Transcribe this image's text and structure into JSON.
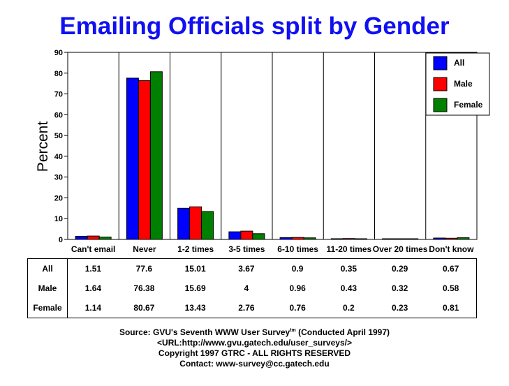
{
  "chart_data": {
    "type": "bar",
    "title": "Emailing Officials split by Gender",
    "ylabel": "Percent",
    "ylim": [
      0,
      90
    ],
    "yticks": [
      0,
      10,
      20,
      30,
      40,
      50,
      60,
      70,
      80,
      90
    ],
    "grid": "vertical lines between categories",
    "legend_position": "top-right",
    "categories": [
      "Can't email",
      "Never",
      "1-2 times",
      "3-5 times",
      "6-10 times",
      "11-20 times",
      "Over 20 times",
      "Don't know"
    ],
    "series": [
      {
        "name": "All",
        "color": "#0000ff",
        "values": [
          1.51,
          77.6,
          15.01,
          3.67,
          0.9,
          0.35,
          0.29,
          0.67
        ]
      },
      {
        "name": "Male",
        "color": "#ff0000",
        "values": [
          1.64,
          76.38,
          15.69,
          4,
          0.96,
          0.43,
          0.32,
          0.58
        ]
      },
      {
        "name": "Female",
        "color": "#008000",
        "values": [
          1.14,
          80.67,
          13.43,
          2.76,
          0.76,
          0.2,
          0.23,
          0.81
        ]
      }
    ],
    "table_rows": [
      {
        "label": "All",
        "values": [
          "1.51",
          "77.6",
          "15.01",
          "3.67",
          "0.9",
          "0.35",
          "0.29",
          "0.67"
        ]
      },
      {
        "label": "Male",
        "values": [
          "1.64",
          "76.38",
          "15.69",
          "4",
          "0.96",
          "0.43",
          "0.32",
          "0.58"
        ]
      },
      {
        "label": "Female",
        "values": [
          "1.14",
          "80.67",
          "13.43",
          "2.76",
          "0.76",
          "0.2",
          "0.23",
          "0.81"
        ]
      }
    ]
  },
  "footer": {
    "source_prefix": "Source: GVU's Seventh WWW User Survey",
    "source_sup": "tm",
    "source_suffix": " (Conducted April 1997)",
    "url": "<URL:http://www.gvu.gatech.edu/user_surveys/>",
    "copyright": "Copyright 1997 GTRC - ALL RIGHTS RESERVED",
    "contact": "Contact: www-survey@cc.gatech.edu"
  }
}
